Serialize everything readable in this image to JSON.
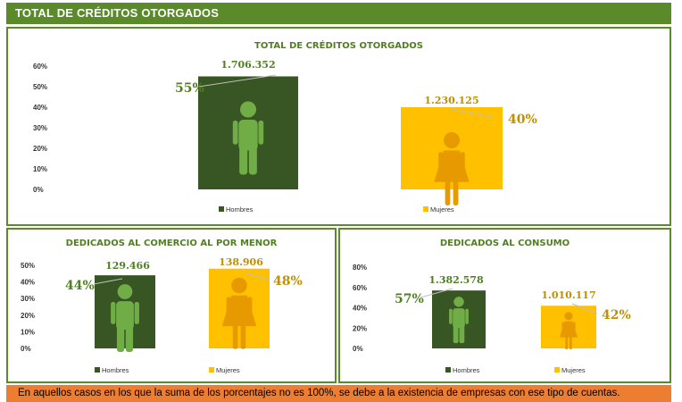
{
  "header": {
    "title": "TOTAL DE CRÉDITOS OTORGADOS"
  },
  "colors": {
    "green": "#375623",
    "yellow": "#ffc000",
    "frame": "#5b8a2b",
    "text_green": "#4f7f22",
    "text_yellow": "#bf9000",
    "icon_green": "#70ad47",
    "icon_yellow": "#e69a00",
    "note_bg": "#ed7d31"
  },
  "chart_data": [
    {
      "type": "bar",
      "title": "TOTAL DE CRÉDITOS OTORGADOS",
      "categories": [
        "Hombres",
        "Mujeres"
      ],
      "values": [
        55,
        40
      ],
      "value_labels": [
        "1.706.352",
        "1.230.125"
      ],
      "percent_labels": [
        "55%",
        "40%"
      ],
      "yticks": [
        "60%",
        "50%",
        "40%",
        "30%",
        "20%",
        "10%",
        "0%"
      ],
      "ylim": [
        0,
        60
      ],
      "legend": [
        "Hombres",
        "Mujeres"
      ],
      "legend_position": "bottom",
      "icons": [
        "man-icon",
        "woman-icon"
      ]
    },
    {
      "type": "bar",
      "title": "DEDICADOS AL COMERCIO AL POR MENOR",
      "categories": [
        "Hombres",
        "Mujeres"
      ],
      "values": [
        44,
        48
      ],
      "value_labels": [
        "129.466",
        "138.906"
      ],
      "percent_labels": [
        "44%",
        "48%"
      ],
      "yticks": [
        "50%",
        "40%",
        "30%",
        "20%",
        "10%",
        "0%"
      ],
      "ylim": [
        0,
        50
      ],
      "legend": [
        "Hombres",
        "Mujeres"
      ],
      "legend_position": "bottom",
      "icons": [
        "man-icon",
        "woman-icon"
      ]
    },
    {
      "type": "bar",
      "title": "DEDICADOS AL CONSUMO",
      "categories": [
        "Hombres",
        "Mujeres"
      ],
      "values": [
        57,
        42
      ],
      "value_labels": [
        "1.382.578",
        "1.010.117"
      ],
      "percent_labels": [
        "57%",
        "42%"
      ],
      "yticks": [
        "80%",
        "60%",
        "40%",
        "20%",
        "0%"
      ],
      "ylim": [
        0,
        80
      ],
      "legend": [
        "Hombres",
        "Mujeres"
      ],
      "legend_position": "bottom",
      "icons": [
        "man-icon",
        "woman-icon"
      ]
    }
  ],
  "footer": {
    "note": "En aquellos casos en los que la suma de los porcentajes no es 100%, se debe a la existencia de empresas con ese tipo de cuentas."
  }
}
